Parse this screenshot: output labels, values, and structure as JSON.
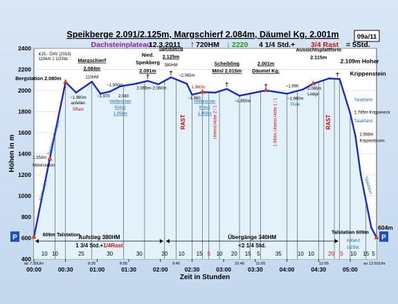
{
  "header": {
    "line1": "Speikberge 2.091/2.125m, Margschierf 2.084m, Däumel Kg. 2.001m",
    "region": "Dachsteinplateau",
    "date": "12.3.2011",
    "up": "720HM",
    "down": "2220",
    "duration": "4 1/4 Std.+",
    "rest": "3/4 Rast",
    "total": "= 5Std.",
    "badge": "09a/11"
  },
  "infobox": [
    "€15,- ÖAV (2018)",
    "119km 1 1/2Std."
  ],
  "chart_data": {
    "type": "line",
    "xlabel": "Zeit in Stunden",
    "ylabel": "Höhen in m",
    "ylim": [
      400,
      2400
    ],
    "yticks": [
      400,
      600,
      800,
      1000,
      1200,
      1400,
      1600,
      1800,
      2000,
      2200,
      2400
    ],
    "xlim": [
      0,
      325
    ],
    "xticks": [
      {
        "t": 0,
        "label": "00:00"
      },
      {
        "t": 30,
        "label": "00:30"
      },
      {
        "t": 60,
        "label": "01:00"
      },
      {
        "t": 90,
        "label": "01:30"
      },
      {
        "t": 120,
        "label": "02:00"
      },
      {
        "t": 150,
        "label": "02:30"
      },
      {
        "t": 180,
        "label": "03:00"
      },
      {
        "t": 210,
        "label": "03:30"
      },
      {
        "t": 240,
        "label": "04:00"
      },
      {
        "t": 270,
        "label": "04:30"
      },
      {
        "t": 300,
        "label": "05:00"
      }
    ],
    "profile": [
      [
        0,
        609
      ],
      [
        15,
        1350
      ],
      [
        30,
        2080
      ],
      [
        40,
        1980
      ],
      [
        55,
        2084
      ],
      [
        63,
        1970
      ],
      [
        72,
        1990
      ],
      [
        82,
        2040
      ],
      [
        97,
        2065
      ],
      [
        108,
        2091
      ],
      [
        118,
        2060
      ],
      [
        130,
        2125
      ],
      [
        145,
        2065
      ],
      [
        150,
        1960
      ],
      [
        160,
        1985
      ],
      [
        172,
        1980
      ],
      [
        183,
        2015
      ],
      [
        195,
        1950
      ],
      [
        220,
        2001
      ],
      [
        240,
        1970
      ],
      [
        255,
        2010
      ],
      [
        265,
        2065
      ],
      [
        280,
        2115
      ],
      [
        290,
        2109
      ],
      [
        300,
        1785
      ],
      [
        305,
        1568
      ],
      [
        310,
        1200
      ],
      [
        320,
        700
      ],
      [
        325,
        604
      ]
    ],
    "segments": [
      {
        "t": 10,
        "label": "10"
      },
      {
        "t": 20,
        "label": "10"
      },
      {
        "t": 45,
        "label": "25"
      },
      {
        "t": 72,
        "label": "30"
      },
      {
        "t": 100,
        "label": "30"
      },
      {
        "t": 124,
        "label": "20"
      },
      {
        "t": 140,
        "label": "10"
      },
      {
        "t": 157,
        "label": "15"
      },
      {
        "t": 166,
        "label": "5",
        "red": true
      },
      {
        "t": 176,
        "label": "10"
      },
      {
        "t": 190,
        "label": "20"
      },
      {
        "t": 203,
        "label": "15"
      },
      {
        "t": 213,
        "label": "5"
      },
      {
        "t": 232,
        "label": "35"
      },
      {
        "t": 253,
        "label": "10"
      },
      {
        "t": 263,
        "label": "10"
      },
      {
        "t": 282,
        "label": "20",
        "red": true
      },
      {
        "t": 292,
        "label": "5",
        "red": true
      },
      {
        "t": 303,
        "label": "10"
      },
      {
        "t": 315,
        "label": "15"
      },
      {
        "t": 322,
        "label": "5"
      }
    ],
    "below_times": [
      {
        "t": 0,
        "label": "ab 7:30Uhr"
      },
      {
        "t": 55,
        "label": "8:25"
      },
      {
        "t": 85,
        "label": "8:55"
      },
      {
        "t": 135,
        "label": "9:45"
      },
      {
        "t": 195,
        "label": "10:45"
      },
      {
        "t": 215,
        "label": "11:05"
      },
      {
        "t": 275,
        "label": "12:05"
      },
      {
        "t": 323,
        "label": "an 12:55Uhr"
      }
    ],
    "annotations": [
      {
        "t": 10,
        "h": 2100,
        "text": "Bergstation 2.080m",
        "color": "#000",
        "bold": true,
        "anchor": "start",
        "dx": -42
      },
      {
        "t": 55,
        "h": 2270,
        "text": "Margschierf",
        "color": "#000",
        "bold": true,
        "underline": true
      },
      {
        "t": 55,
        "h": 2195,
        "text": "2.084m",
        "color": "#000",
        "bold": true,
        "underline": true
      },
      {
        "t": 55,
        "h": 2115,
        "text": "110HM",
        "color": "#000"
      },
      {
        "t": 42,
        "h": 1920,
        "text": "~1.980m",
        "color": "#000"
      },
      {
        "t": 42,
        "h": 1870,
        "text": "anfellen",
        "color": "#000"
      },
      {
        "t": 42,
        "h": 1810,
        "text": "5Rast",
        "color": "#c00"
      },
      {
        "t": 66,
        "h": 1935,
        "text": "~1.970",
        "color": "#000"
      },
      {
        "t": 77,
        "h": 2040,
        "text": "~1.990m",
        "color": "#000"
      },
      {
        "t": 85,
        "h": 1935,
        "text": "2.040",
        "color": "#000"
      },
      {
        "t": 82,
        "h": 1885,
        "text": "Heilbronner",
        "color": "#1a6aa8",
        "underline": true
      },
      {
        "t": 82,
        "h": 1830,
        "text": "Kreuz",
        "color": "#1a6aa8",
        "underline": true
      },
      {
        "t": 82,
        "h": 1770,
        "text": "1.958m",
        "color": "#1a6aa8",
        "underline": true
      },
      {
        "t": 108,
        "h": 2320,
        "text": "Nied.",
        "color": "#000",
        "bold": true
      },
      {
        "t": 108,
        "h": 2250,
        "text": "Speikberg",
        "color": "#000",
        "bold": true
      },
      {
        "t": 108,
        "h": 2170,
        "text": "2.091m",
        "color": "#000",
        "bold": true,
        "underline": true
      },
      {
        "t": 104,
        "h": 2010,
        "text": "2.065m",
        "color": "#000"
      },
      {
        "t": 118,
        "h": 2010,
        "text": "~2.060m",
        "color": "#000"
      },
      {
        "t": 130,
        "h": 2385,
        "text": "Speikberg",
        "color": "#000",
        "bold": true,
        "underline": true
      },
      {
        "t": 130,
        "h": 2305,
        "text": "2.125m",
        "color": "#000",
        "bold": true,
        "underline": true
      },
      {
        "t": 130,
        "h": 2230,
        "text": "380HM",
        "color": "#000"
      },
      {
        "t": 145,
        "h": 2130,
        "text": "~2.065m",
        "color": "#000"
      },
      {
        "t": 156,
        "h": 2020,
        "text": "1.980m",
        "color": "#c00"
      },
      {
        "t": 152,
        "h": 1915,
        "text": "~1.960",
        "color": "#000"
      },
      {
        "t": 162,
        "h": 1885,
        "text": "Heilbronner",
        "color": "#1a6aa8",
        "underline": true
      },
      {
        "t": 162,
        "h": 1830,
        "text": "Kreuz",
        "color": "#1a6aa8",
        "underline": true
      },
      {
        "t": 162,
        "h": 1770,
        "text": "1.958m",
        "color": "#1a6aa8",
        "underline": true
      },
      {
        "t": 183,
        "h": 2240,
        "text": "Scheibling",
        "color": "#000",
        "bold": true,
        "underline": true
      },
      {
        "t": 183,
        "h": 2170,
        "text": "Mösl 2.015m",
        "color": "#000",
        "bold": true,
        "underline": true
      },
      {
        "t": 198,
        "h": 1890,
        "text": "~1.950m",
        "color": "#000"
      },
      {
        "t": 220,
        "h": 2240,
        "text": "2.001m",
        "color": "#000",
        "bold": true,
        "underline": true
      },
      {
        "t": 220,
        "h": 2170,
        "text": "Däumel Kg.",
        "color": "#000",
        "bold": true,
        "underline": true
      },
      {
        "t": 245,
        "h": 2030,
        "text": "~1.990",
        "color": "#000"
      },
      {
        "t": 248,
        "h": 1910,
        "text": "~1.980m",
        "color": "#000"
      },
      {
        "t": 248,
        "h": 1855,
        "text": "Piste",
        "color": "#1a6aa8"
      },
      {
        "t": 265,
        "h": 2005,
        "text": "~2.065m",
        "color": "#000"
      },
      {
        "t": 265,
        "h": 1955,
        "text": "Lodge",
        "color": "#000"
      },
      {
        "t": 270,
        "h": 2370,
        "text": "Aussichtsplattform",
        "color": "#000",
        "bold": true
      },
      {
        "t": 270,
        "h": 2300,
        "text": "2.115m",
        "color": "#000",
        "bold": true
      },
      {
        "t": 288,
        "h": 2260,
        "text": "2.109m Hoher",
        "color": "#000",
        "bold": true,
        "anchor": "start",
        "dx": 4,
        "big": true
      },
      {
        "t": 288,
        "h": 2140,
        "text": "Krippenstein",
        "color": "#000",
        "bold": true,
        "anchor": "start",
        "dx": 18,
        "big": true
      },
      {
        "t": 300,
        "h": 1900,
        "text": "Talabfahrt",
        "color": "#1a6aa8",
        "anchor": "start",
        "dx": 6
      },
      {
        "t": 300,
        "h": 1780,
        "text": "1.785m Krippeneck",
        "color": "#000",
        "anchor": "start",
        "dx": 6
      },
      {
        "t": 300,
        "h": 1700,
        "text": "Talabfahrt",
        "color": "#1a6aa8",
        "anchor": "start",
        "dx": 6
      },
      {
        "t": 305,
        "h": 1570,
        "text": "1.568m",
        "color": "#000",
        "anchor": "start",
        "dx": 6
      },
      {
        "t": 305,
        "h": 1510,
        "text": "Krippenbrunn",
        "color": "#000",
        "anchor": "start",
        "dx": 6
      },
      {
        "t": 8,
        "h": 1350,
        "text": "1.350m",
        "color": "#000",
        "anchor": "start",
        "dx": -14
      },
      {
        "t": 8,
        "h": 1280,
        "text": "Mittelstation",
        "color": "#000",
        "anchor": "start",
        "dx": -14
      },
      {
        "t": 3,
        "h": 615,
        "text": "609m Talstation",
        "color": "#000",
        "anchor": "start",
        "dx": 8,
        "bold": true
      },
      {
        "t": 300,
        "h": 640,
        "text": "Talstation 609m",
        "color": "#000",
        "anchor": "middle",
        "bold": true
      },
      {
        "t": 303,
        "h": 565,
        "text": "Abfahrt",
        "color": "#1a6aa8"
      },
      {
        "t": 303,
        "h": 500,
        "text": "1/2Std.",
        "color": "#1a6aa8"
      },
      {
        "t": 325,
        "h": 680,
        "text": "604m",
        "color": "#000",
        "bold": true,
        "anchor": "start",
        "dx": 2,
        "big": true
      }
    ],
    "rotated": [
      {
        "t": 20,
        "h": 1550,
        "text": "Dachstein-Seilbahn",
        "color": "#1a6aa8",
        "rot": -74
      },
      {
        "t": 10,
        "h": 1050,
        "text": "Seilstecke I",
        "color": "#1a6aa8",
        "rot": -74
      },
      {
        "t": 143,
        "h": 1700,
        "text": "RAST",
        "color": "#c00",
        "rot": -90,
        "bold": true
      },
      {
        "t": 173,
        "h": 1700,
        "text": "Unterst.Hütte 2 / 1",
        "color": "#c00",
        "rot": -90
      },
      {
        "t": 230,
        "h": 1700,
        "text": "1.940m Unterst.Hütte 1 / 1",
        "color": "#c00",
        "rot": -90
      },
      {
        "t": 281,
        "h": 1700,
        "text": "RAST",
        "color": "#c00",
        "rot": -90,
        "bold": true
      },
      {
        "t": 316,
        "h": 1100,
        "text": "Talabfahrt",
        "color": "#1a6aa8",
        "rot": 74
      }
    ],
    "spans": [
      {
        "t0": 0,
        "t1": 124,
        "line1": "Aufstieg 380HM",
        "line2a": "1 3/4 Std.+",
        "line2b": "1/4Rast"
      },
      {
        "t0": 124,
        "t1": 290,
        "line1": "Übergänge 340HM",
        "line2a": "<2 1/4 Std.",
        "line2b": ""
      }
    ],
    "p_marks": [
      "P",
      "P"
    ]
  }
}
